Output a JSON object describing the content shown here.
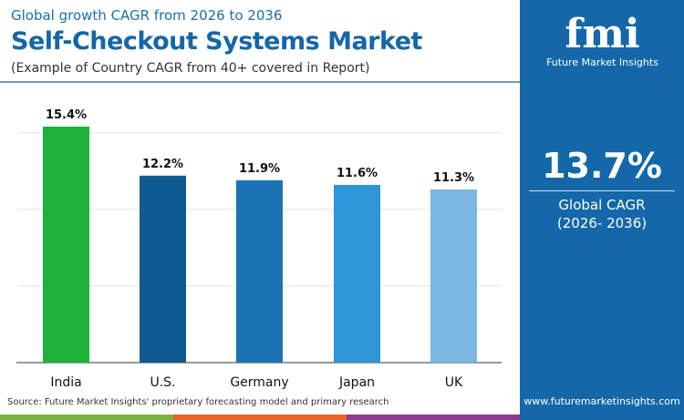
{
  "header": {
    "subtitle": "Global growth CAGR from 2026 to 2036",
    "title": "Self-Checkout Systems Market",
    "note": "(Example of Country CAGR from 40+ covered in Report)"
  },
  "sidebar": {
    "logo_text": "fmi",
    "brand": "Future Market Insights",
    "global_value": "13.7%",
    "global_label": "Global CAGR",
    "global_period": "(2026- 2036)",
    "website": "www.futuremarketinsights.com",
    "bg_color": "#1467a8"
  },
  "footer": {
    "source": "Source: Future Market Insights' proprietary forecasting model and primary research"
  },
  "chart_data": {
    "type": "bar",
    "categories": [
      "India",
      "U.S.",
      "Germany",
      "Japan",
      "UK"
    ],
    "values": [
      15.4,
      12.2,
      11.9,
      11.6,
      11.3
    ],
    "labels": [
      "15.4%",
      "12.2%",
      "11.9%",
      "11.6%",
      "11.3%"
    ],
    "colors": [
      "#1db33a",
      "#0e5a91",
      "#1a74b5",
      "#2d95d8",
      "#7ab8e3"
    ],
    "ylim": [
      0,
      15.4
    ],
    "grid": true,
    "unit": "%"
  }
}
